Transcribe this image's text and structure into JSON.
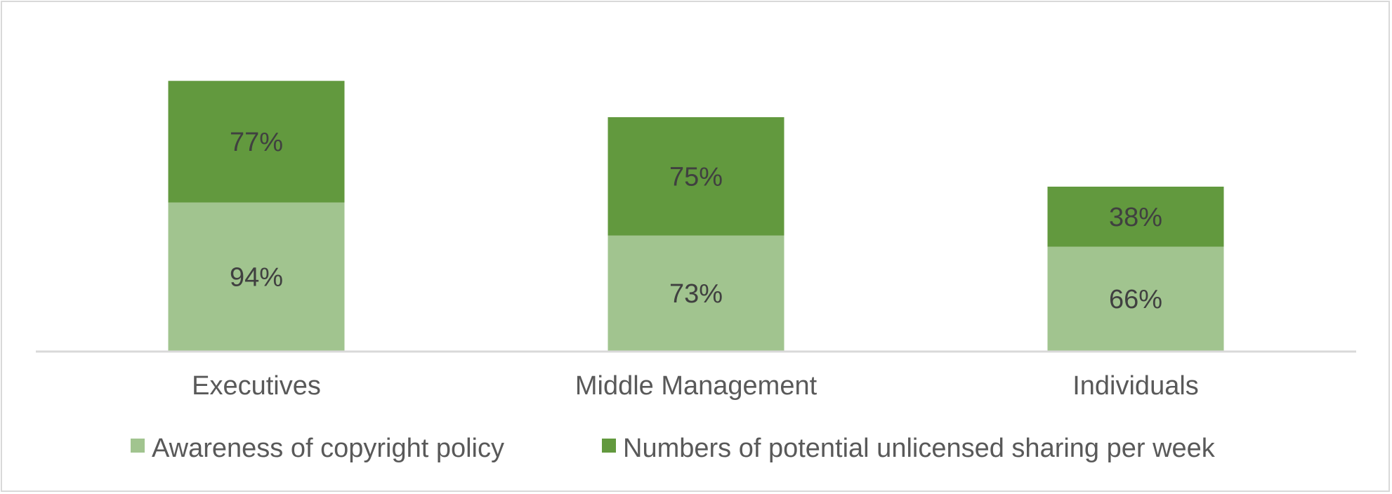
{
  "chart_data": {
    "type": "bar",
    "stacked": true,
    "categories": [
      "Executives",
      "Middle Management",
      "Individuals"
    ],
    "series": [
      {
        "name": "Awareness of copyright policy",
        "values": [
          94,
          73,
          66
        ],
        "labels": [
          "94%",
          "73%",
          "66%"
        ],
        "color": "#a1c48f"
      },
      {
        "name": "Numbers of potential unlicensed sharing per week",
        "values": [
          77,
          75,
          38
        ],
        "labels": [
          "77%",
          "75%",
          "38%"
        ],
        "color": "#62993e"
      }
    ],
    "title": "",
    "xlabel": "",
    "ylabel": "",
    "ylim": [
      0,
      190
    ],
    "grid": false,
    "legend_position": "bottom",
    "axis_color": "#d9d9d9"
  }
}
